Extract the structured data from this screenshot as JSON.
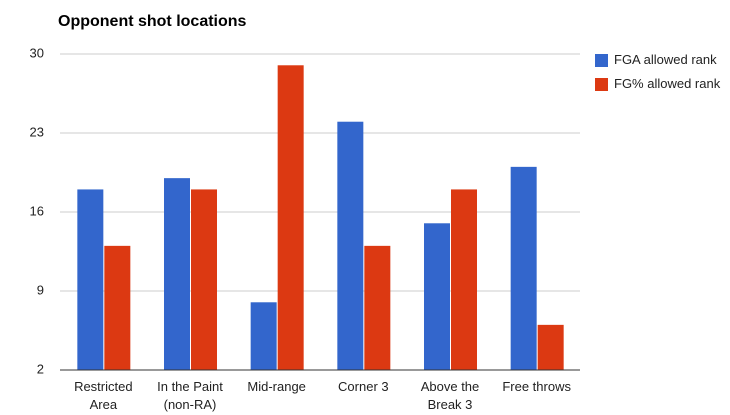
{
  "chart_data": {
    "type": "bar",
    "title": "Opponent shot locations",
    "categories": [
      "Restricted Area",
      "In the Paint (non-RA)",
      "Mid-range",
      "Corner 3",
      "Above the Break 3",
      "Free throws"
    ],
    "series": [
      {
        "name": "FGA allowed rank",
        "color": "#3366cc",
        "values": [
          18,
          19,
          8,
          24,
          15,
          20
        ]
      },
      {
        "name": "FG% allowed rank",
        "color": "#dc3912",
        "values": [
          13,
          18,
          29,
          13,
          18,
          6
        ]
      }
    ],
    "ylim": [
      2,
      30
    ],
    "yticks": [
      2,
      9,
      16,
      23,
      30
    ],
    "grid": true,
    "legend": "right"
  }
}
